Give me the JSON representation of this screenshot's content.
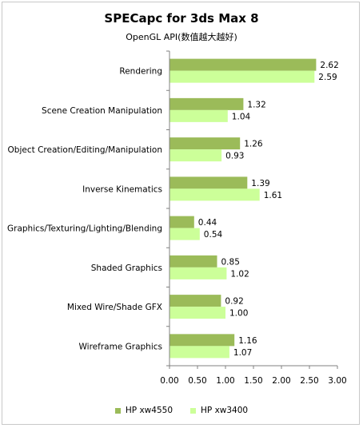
{
  "chart_data": {
    "type": "bar",
    "orientation": "horizontal",
    "title": "SPECapc for 3ds Max 8",
    "subtitle": "OpenGL API(数值越大越好)",
    "categories": [
      "Rendering",
      "Scene Creation Manipulation",
      "Object Creation/Editing/Manipulation",
      "Inverse Kinematics",
      "Graphics/Texturing/Lighting/Blending",
      "Shaded Graphics",
      "Mixed Wire/Shade GFX",
      "Wireframe Graphics"
    ],
    "series": [
      {
        "name": "HP xw4550",
        "color": "#9bbb59",
        "values": [
          2.62,
          1.32,
          1.26,
          1.39,
          0.44,
          0.85,
          0.92,
          1.16
        ],
        "labels": [
          "2.62",
          "1.32",
          "1.26",
          "1.39",
          "0.44",
          "0.85",
          "0.92",
          "1.16"
        ]
      },
      {
        "name": "HP xw3400",
        "color": "#ccff99",
        "values": [
          2.59,
          1.04,
          0.93,
          1.61,
          0.54,
          1.02,
          1.0,
          1.07
        ],
        "labels": [
          "2.59",
          "1.04",
          "0.93",
          "1.61",
          "0.54",
          "1.02",
          "1.00",
          "1.07"
        ]
      }
    ],
    "xlim": [
      0,
      3
    ],
    "xticks": [
      0,
      0.5,
      1,
      1.5,
      2,
      2.5,
      3
    ],
    "xtick_labels": [
      "0.00",
      "0.50",
      "1.00",
      "1.50",
      "2.00",
      "2.50",
      "3.00"
    ],
    "grid": false,
    "legend_position": "bottom"
  }
}
